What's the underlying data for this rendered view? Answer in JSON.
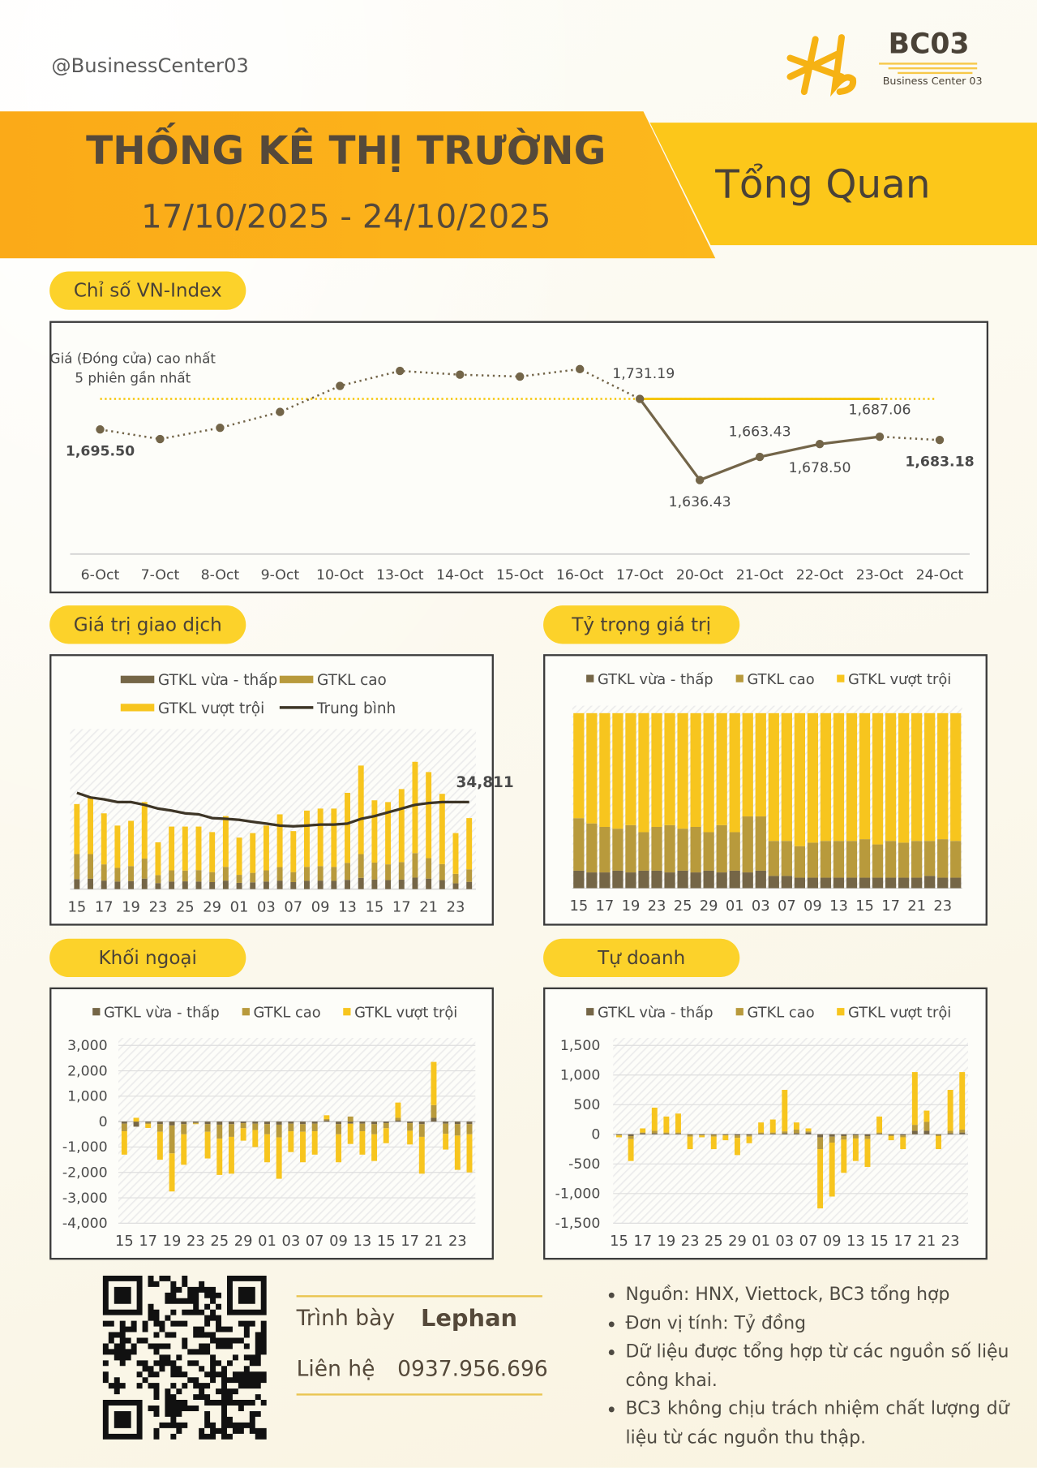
{
  "header": {
    "handle": "@BusinessCenter03",
    "logo_title": "BC03",
    "logo_subtitle": "Business Center 03",
    "title": "THỐNG KÊ THỊ TRƯỜNG",
    "date_range": "17/10/2025 - 24/10/2025",
    "section": "Tổng Quan"
  },
  "sections": [
    "Chỉ số VN-Index",
    "Giá trị giao dịch",
    "Tỷ trọng giá trị",
    "Khối ngoại",
    "Tự doanh"
  ],
  "chart_data": [
    {
      "type": "line",
      "categories": [
        "6-Oct",
        "7-Oct",
        "8-Oct",
        "9-Oct",
        "10-Oct",
        "13-Oct",
        "14-Oct",
        "15-Oct",
        "16-Oct",
        "17-Oct",
        "20-Oct",
        "21-Oct",
        "22-Oct",
        "23-Oct",
        "24-Oct"
      ],
      "values": [
        1695.5,
        1684.3,
        1697.4,
        1716.0,
        1746.4,
        1763.9,
        1759.5,
        1757.3,
        1766.0,
        1731.19,
        1636.43,
        1663.43,
        1678.5,
        1687.06,
        1683.18
      ],
      "value_labels": [
        "1,695.50",
        null,
        null,
        null,
        null,
        null,
        null,
        null,
        null,
        "1,731.19",
        "1,636.43",
        "1,663.43",
        "1,678.50",
        "1,687.06",
        "1,683.18"
      ],
      "color": "#736549",
      "ylim": [
        1550,
        1820
      ],
      "reference": {
        "value": 1731.19,
        "label": [
          "Giá (Đóng cửa) cao nhất",
          "5 phiên gần nhất"
        ],
        "color": "#f5c400"
      }
    },
    {
      "type": "bar",
      "stacked": true,
      "categories": [
        "15",
        null,
        "17",
        null,
        "19",
        null,
        "23",
        null,
        "25",
        null,
        "29",
        null,
        "01",
        null,
        "03",
        null,
        "07",
        null,
        "09",
        null,
        "13",
        null,
        "15",
        null,
        "17",
        null,
        "21",
        null,
        "23",
        null
      ],
      "ylim": [
        0,
        61000
      ],
      "series": [
        {
          "name": "GTKL vừa - thấp",
          "color": "#756647",
          "values": [
            4000,
            4200,
            3400,
            3000,
            3200,
            4200,
            2400,
            3000,
            3100,
            3000,
            2800,
            3400,
            2500,
            2700,
            3000,
            3400,
            2800,
            3300,
            3400,
            3300,
            3700,
            4500,
            3800,
            3600,
            3800,
            4600,
            4200,
            3600,
            2300,
            2900
          ]
        },
        {
          "name": "GTKL cao",
          "color": "#b89a3c",
          "values": [
            10000,
            9800,
            6500,
            5500,
            6000,
            8000,
            3200,
            4500,
            4300,
            4600,
            4000,
            5500,
            3200,
            3800,
            4500,
            5400,
            4000,
            5600,
            5800,
            5600,
            6800,
            9500,
            6800,
            6300,
            7000,
            9800,
            8200,
            6400,
            3800,
            5000
          ]
        },
        {
          "name": "GTKL vượt trội",
          "color": "#f7c51e",
          "values": [
            20000,
            23000,
            20400,
            16900,
            18100,
            22600,
            13100,
            17500,
            17600,
            17400,
            16000,
            20300,
            14900,
            15900,
            17900,
            21100,
            16400,
            22500,
            23000,
            23300,
            28000,
            35400,
            24900,
            24900,
            29200,
            36500,
            34400,
            28100,
            16300,
            20500
          ]
        },
        {
          "name": "Trung bình",
          "type": "line",
          "color": "#3d3526",
          "values": [
            38500,
            36650,
            35900,
            34800,
            34800,
            33700,
            32200,
            31400,
            30300,
            29900,
            28400,
            28100,
            27700,
            26900,
            26200,
            25400,
            25100,
            25400,
            25800,
            25800,
            26200,
            28100,
            29200,
            30700,
            32200,
            33700,
            34400,
            34800,
            34800,
            34811
          ],
          "value_labels": [
            null,
            null,
            null,
            null,
            null,
            null,
            null,
            null,
            null,
            null,
            null,
            null,
            null,
            null,
            null,
            null,
            null,
            null,
            null,
            null,
            null,
            null,
            null,
            null,
            null,
            null,
            null,
            null,
            null,
            "34,811"
          ]
        }
      ]
    },
    {
      "type": "bar",
      "stacked": true,
      "categories": [
        "15",
        null,
        "17",
        null,
        "19",
        null,
        "23",
        null,
        "25",
        null,
        "29",
        null,
        "01",
        null,
        "03",
        null,
        "07",
        null,
        "09",
        null,
        "13",
        null,
        "15",
        null,
        "17",
        null,
        "21",
        null,
        "23",
        null
      ],
      "ylim": [
        0,
        100
      ],
      "series": [
        {
          "name": "GTKL vừa - thấp",
          "color": "#756647",
          "values": [
            10,
            9,
            9,
            10,
            9,
            10,
            10,
            9,
            10,
            9,
            10,
            9,
            10,
            9,
            10,
            7,
            7,
            6,
            6,
            6,
            6,
            6,
            6,
            6,
            6,
            6,
            6,
            7,
            6,
            6
          ]
        },
        {
          "name": "GTKL cao",
          "color": "#b89a3c",
          "values": [
            30,
            28,
            26,
            24,
            27,
            22,
            25,
            27,
            24,
            26,
            22,
            27,
            22,
            32,
            31,
            20,
            20,
            18,
            20,
            21,
            21,
            21,
            22,
            19,
            21,
            20,
            21,
            20,
            22,
            21
          ]
        },
        {
          "name": "GTKL vượt trội",
          "color": "#f7c51e",
          "values": [
            60,
            63,
            65,
            66,
            64,
            68,
            65,
            64,
            66,
            65,
            68,
            64,
            68,
            59,
            59,
            73,
            73,
            76,
            74,
            73,
            73,
            73,
            72,
            75,
            73,
            74,
            73,
            73,
            72,
            73
          ]
        }
      ]
    },
    {
      "type": "bar",
      "stacked": true,
      "categories": [
        "15",
        null,
        "17",
        null,
        "19",
        null,
        "23",
        null,
        "25",
        null,
        "29",
        null,
        "01",
        null,
        "03",
        null,
        "07",
        null,
        "09",
        null,
        "13",
        null,
        "15",
        null,
        "17",
        null,
        "21",
        null,
        "23",
        null
      ],
      "ylim": [
        -4000,
        3000
      ],
      "yticks": [
        {
          "value": 3000,
          "label": "3,000"
        },
        {
          "value": 2000,
          "label": "2,000"
        },
        {
          "value": 1000,
          "label": "1,000"
        },
        0,
        {
          "value": -1000,
          "label": "-1,000"
        },
        {
          "value": -2000,
          "label": "-2,000"
        },
        {
          "value": -3000,
          "label": "-3,000"
        },
        {
          "value": -4000,
          "label": "-4,000"
        }
      ],
      "grid": true,
      "series": [
        {
          "name": "GTKL vừa - thấp",
          "color": "#756647",
          "values": [
            -80,
            -200,
            -50,
            -100,
            -150,
            -100,
            -50,
            -100,
            -120,
            -100,
            -60,
            -80,
            -100,
            -120,
            -80,
            -100,
            -80,
            50,
            -100,
            -80,
            -80,
            -100,
            -60,
            50,
            -60,
            -100,
            150,
            -80,
            -100,
            -100
          ]
        },
        {
          "name": "GTKL cao",
          "color": "#b89a3c",
          "values": [
            -300,
            0,
            -50,
            -300,
            -1100,
            -400,
            -30,
            -300,
            -550,
            -500,
            -200,
            -250,
            -400,
            -500,
            -300,
            -300,
            -300,
            50,
            -400,
            200,
            -300,
            -400,
            -200,
            100,
            -300,
            -500,
            500,
            -400,
            -450,
            -400
          ]
        },
        {
          "name": "GTKL vượt trội",
          "color": "#f7c51e",
          "values": [
            -920,
            150,
            -150,
            -1100,
            -1500,
            -1200,
            -20,
            -1050,
            -1430,
            -1450,
            -490,
            -670,
            -1100,
            -1630,
            -820,
            -1200,
            -920,
            150,
            -1100,
            -800,
            -920,
            -1050,
            -590,
            600,
            -540,
            -1450,
            1700,
            -620,
            -1350,
            -1500
          ]
        }
      ]
    },
    {
      "type": "bar",
      "stacked": true,
      "categories": [
        "15",
        null,
        "17",
        null,
        "19",
        null,
        "23",
        null,
        "25",
        null,
        "29",
        null,
        "01",
        null,
        "03",
        null,
        "07",
        null,
        "09",
        null,
        "13",
        null,
        "15",
        null,
        "17",
        null,
        "21",
        null,
        "23",
        null
      ],
      "ylim": [
        -1500,
        1500
      ],
      "yticks": [
        {
          "value": 1500,
          "label": "1,500"
        },
        {
          "value": 1000,
          "label": "1,000"
        },
        500,
        0,
        -500,
        {
          "value": -1000,
          "label": "-1,000"
        },
        {
          "value": -1500,
          "label": "-1,500"
        }
      ],
      "grid": true,
      "series": [
        {
          "name": "GTKL vừa - thấp",
          "color": "#756647",
          "values": [
            -10,
            -30,
            20,
            20,
            10,
            10,
            -10,
            -10,
            -10,
            -10,
            -20,
            -20,
            10,
            10,
            20,
            20,
            30,
            -50,
            -40,
            -30,
            -20,
            -30,
            10,
            -10,
            -20,
            60,
            60,
            -10,
            20,
            30
          ]
        },
        {
          "name": "GTKL cao",
          "color": "#b89a3c",
          "values": [
            -10,
            -50,
            10,
            40,
            20,
            20,
            -30,
            -10,
            -30,
            -10,
            -40,
            -20,
            20,
            20,
            30,
            60,
            20,
            -200,
            -100,
            -60,
            -50,
            -50,
            20,
            -20,
            -30,
            100,
            150,
            -20,
            40,
            50
          ]
        },
        {
          "name": "GTKL vượt trội",
          "color": "#f7c51e",
          "values": [
            -30,
            -370,
            70,
            390,
            270,
            320,
            -210,
            -30,
            -210,
            -80,
            -290,
            -110,
            170,
            220,
            700,
            120,
            50,
            -1000,
            -910,
            -560,
            -380,
            -470,
            270,
            -70,
            -200,
            890,
            190,
            -220,
            690,
            970
          ]
        }
      ]
    }
  ],
  "footer": {
    "presenter_label": "Trình bày",
    "presenter": "Lephan",
    "contact_label": "Liên hệ",
    "contact": "0937.956.696",
    "notes": [
      "Nguồn: HNX, Viettock, BC3 tổng hợp",
      "Đơn vị tính: Tỷ đồng",
      "Dữ liệu được tổng hợp từ các nguồn số liệu công khai.",
      "BC3 không chịu trách nhiệm chất lượng dữ liệu từ các nguồn thu thập."
    ]
  }
}
